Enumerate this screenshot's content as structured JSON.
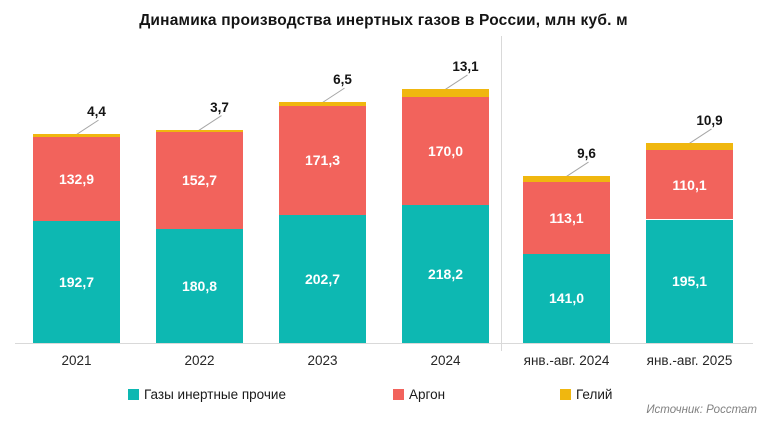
{
  "source": "Источник: Росстат",
  "chart_data": {
    "type": "bar",
    "stacked": true,
    "title": "Динамика производства инертных газов в России, млн куб. м",
    "unit": "млн куб. м",
    "categories": [
      "2021",
      "2022",
      "2023",
      "2024",
      "янв.-авг. 2024",
      "янв.-авг. 2025"
    ],
    "series": [
      {
        "name": "Газы инертные прочие",
        "color": "#0db8b2",
        "label_style": "inside-white",
        "values": [
          192.7,
          180.8,
          202.7,
          218.2,
          141.0,
          195.1
        ]
      },
      {
        "name": "Аргон",
        "color": "#f2635c",
        "label_style": "inside-white",
        "values": [
          132.9,
          152.7,
          171.3,
          170.0,
          113.1,
          110.1
        ]
      },
      {
        "name": "Гелий",
        "color": "#f0b70f",
        "label_style": "callout-above",
        "values": [
          4.4,
          3.7,
          6.5,
          13.1,
          9.6,
          10.9
        ]
      }
    ],
    "value_labels": "on, comma decimal, 1 decimal place",
    "legend_position": "bottom",
    "value_axis": "hidden",
    "grid": "off",
    "group_divider_after_index": 3
  }
}
